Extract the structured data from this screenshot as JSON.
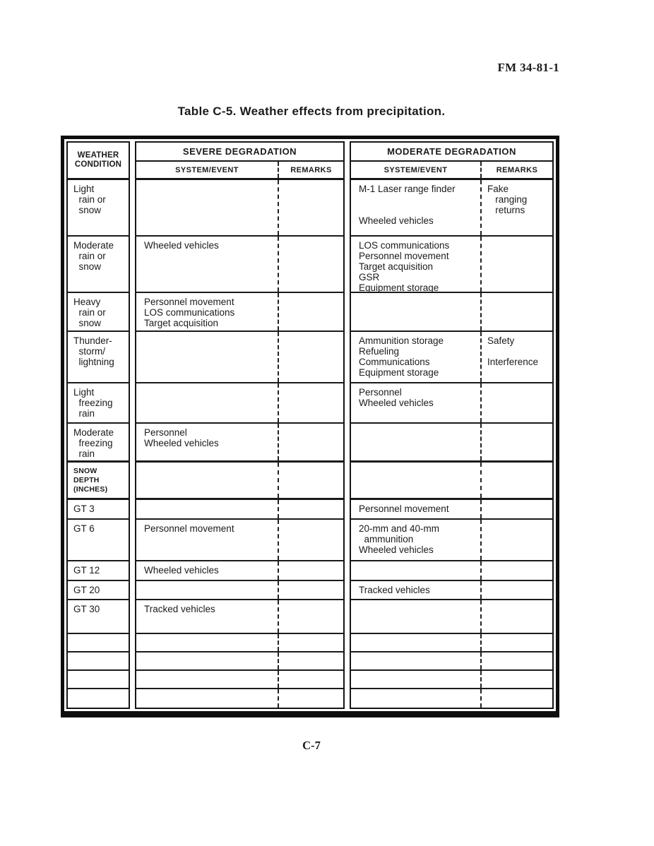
{
  "doc": {
    "ref": "FM 34-81-1",
    "title": "Table C-5.  Weather effects from precipitation.",
    "page_number": "C-7"
  },
  "table": {
    "headers": {
      "weather_condition": "WEATHER\nCONDITION",
      "severe": "SEVERE DEGRADATION",
      "moderate": "MODERATE DEGRADATION",
      "system_event": "SYSTEM/EVENT",
      "remarks": "REMARKS"
    },
    "rows": [
      {
        "weather": "Light\n  rain or\n  snow",
        "severe_system": "",
        "severe_remarks": "",
        "moderate_system": "M-1 Laser range finder\n\n\nWheeled vehicles",
        "moderate_remarks": "Fake\n   ranging\n   returns"
      },
      {
        "weather": "Moderate\n  rain or\n  snow",
        "severe_system": "Wheeled vehicles",
        "severe_remarks": "",
        "moderate_system": "LOS communications\nPersonnel movement\nTarget acquisition\nGSR\nEquipment storage",
        "moderate_remarks": ""
      },
      {
        "weather": "Heavy\n  rain or\n  snow",
        "severe_system": "Personnel movement\nLOS communications\nTarget acquisition",
        "severe_remarks": "",
        "moderate_system": "",
        "moderate_remarks": ""
      },
      {
        "weather": "Thunder-\n  storm/\n  lightning",
        "severe_system": "",
        "severe_remarks": "",
        "moderate_system": "Ammunition storage\nRefueling\nCommunications\nEquipment storage",
        "moderate_remarks": "Safety\n\nInterference"
      },
      {
        "weather": "Light\n  freezing\n  rain",
        "severe_system": "",
        "severe_remarks": "",
        "moderate_system": "Personnel\nWheeled vehicles",
        "moderate_remarks": ""
      },
      {
        "weather": "Moderate\n  freezing\n  rain",
        "severe_system": "Personnel\nWheeled vehicles",
        "severe_remarks": "",
        "moderate_system": "",
        "moderate_remarks": ""
      },
      {
        "weather": "SNOW\nDEPTH\n(INCHES)",
        "severe_system": "",
        "severe_remarks": "",
        "moderate_system": "",
        "moderate_remarks": ""
      },
      {
        "weather": "GT 3",
        "severe_system": "",
        "severe_remarks": "",
        "moderate_system": "Personnel movement",
        "moderate_remarks": ""
      },
      {
        "weather": "GT 6",
        "severe_system": "Personnel movement",
        "severe_remarks": "",
        "moderate_system": "20-mm and 40-mm\n  ammunition\nWheeled vehicles",
        "moderate_remarks": ""
      },
      {
        "weather": "GT 12",
        "severe_system": "Wheeled vehicles",
        "severe_remarks": "",
        "moderate_system": "",
        "moderate_remarks": ""
      },
      {
        "weather": "GT 20",
        "severe_system": "",
        "severe_remarks": "",
        "moderate_system": "Tracked vehicles",
        "moderate_remarks": ""
      },
      {
        "weather": "GT 30",
        "severe_system": "Tracked vehicles",
        "severe_remarks": "",
        "moderate_system": "",
        "moderate_remarks": ""
      },
      {
        "weather": "",
        "severe_system": "",
        "severe_remarks": "",
        "moderate_system": "",
        "moderate_remarks": ""
      },
      {
        "weather": "",
        "severe_system": "",
        "severe_remarks": "",
        "moderate_system": "",
        "moderate_remarks": ""
      },
      {
        "weather": "",
        "severe_system": "",
        "severe_remarks": "",
        "moderate_system": "",
        "moderate_remarks": ""
      },
      {
        "weather": "",
        "severe_system": "",
        "severe_remarks": "",
        "moderate_system": "",
        "moderate_remarks": ""
      }
    ]
  }
}
